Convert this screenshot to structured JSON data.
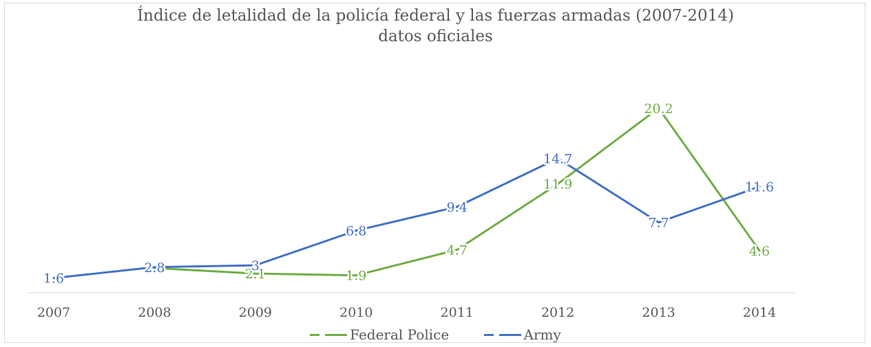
{
  "chart_data": {
    "type": "line",
    "title": "Índice de letalidad  de la policía federal y las fuerzas armadas (2007-2014)",
    "subtitle": "datos oficiales",
    "categories": [
      "2007",
      "2008",
      "2009",
      "2010",
      "2011",
      "2012",
      "2013",
      "2014"
    ],
    "ylim": [
      0,
      23
    ],
    "grid": false,
    "legend_position": "bottom",
    "series": [
      {
        "name": "Federal Police",
        "color": "#70ad47",
        "values": [
          null,
          2.7,
          2.1,
          1.9,
          4.7,
          11.9,
          20.2,
          4.6
        ],
        "labels": [
          "",
          "2.7",
          "2.1",
          "1.9",
          "4.7",
          "11.9",
          "20.2",
          "4.6"
        ]
      },
      {
        "name": "Army",
        "color": "#4472c4",
        "values": [
          1.6,
          2.8,
          3,
          6.8,
          9.4,
          14.7,
          7.7,
          11.6
        ],
        "labels": [
          "1.6",
          "2.8",
          "3",
          "6.8",
          "9.4",
          "14.7",
          "7.7",
          "11.6"
        ]
      }
    ]
  }
}
